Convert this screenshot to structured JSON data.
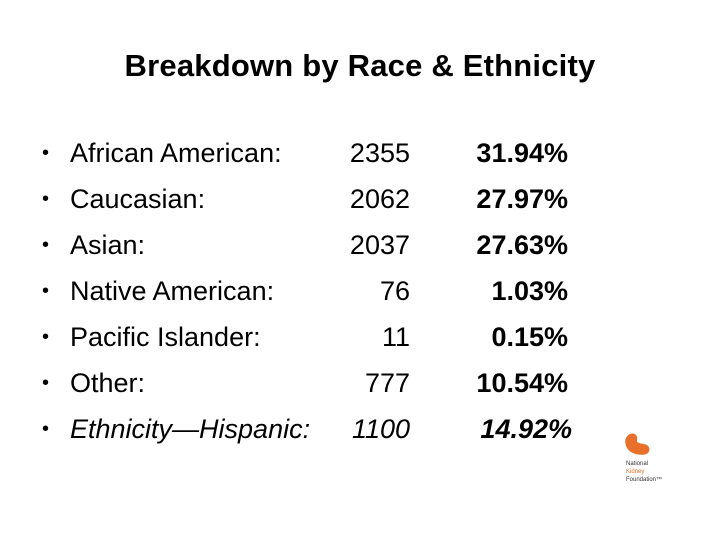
{
  "title": "Breakdown by Race & Ethnicity",
  "bullet_glyph": "•",
  "rows": [
    {
      "label": "African American:",
      "count": "2355",
      "percent": "31.94%"
    },
    {
      "label": "Caucasian:",
      "count": "2062",
      "percent": "27.97%"
    },
    {
      "label": "Asian:",
      "count": "2037",
      "percent": "27.63%"
    },
    {
      "label": "Native American:",
      "count": "76",
      "percent": "1.03%"
    },
    {
      "label": "Pacific Islander:",
      "count": "11",
      "percent": "0.15%"
    },
    {
      "label": "Other:",
      "count": "777",
      "percent": "10.54%"
    },
    {
      "label": "Ethnicity—Hispanic:",
      "count": "1100",
      "percent": "14.92%"
    }
  ],
  "logo": {
    "line1": "National",
    "line2": "Kidney",
    "line3": "Foundation™",
    "accent_color": "#e8702a"
  }
}
